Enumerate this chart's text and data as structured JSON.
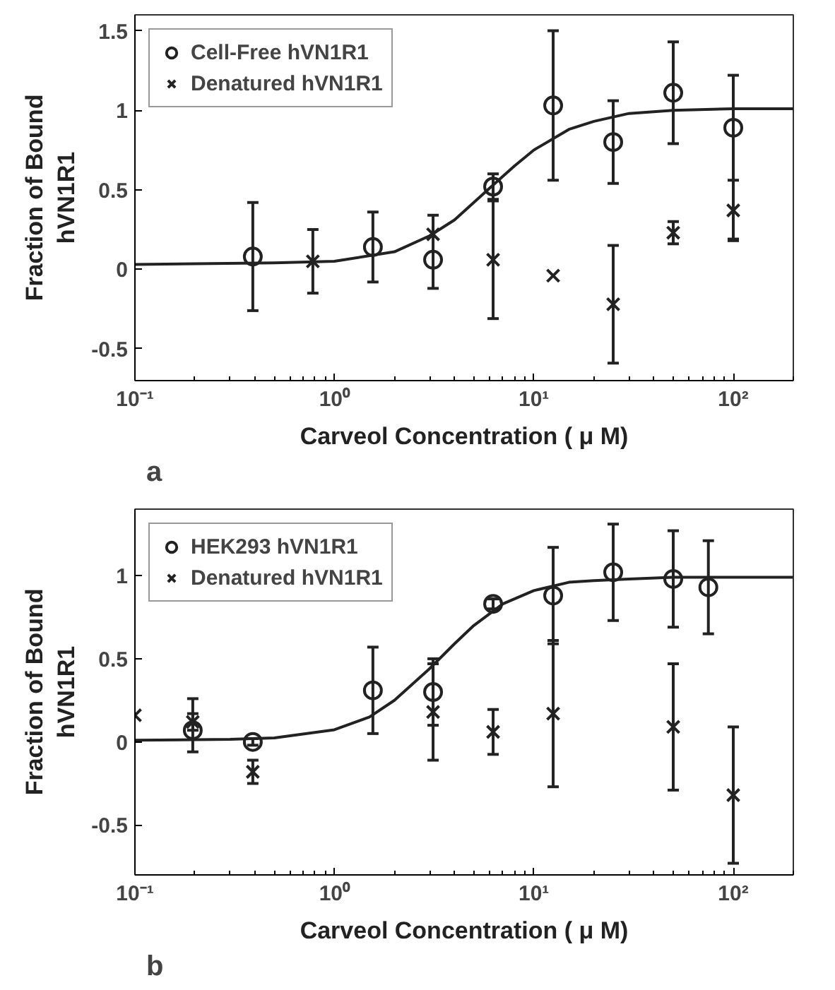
{
  "chart_data": [
    {
      "type": "scatter",
      "xlabel": "Carveol Concentration ( μ M)",
      "ylabel": "Fraction of Bound\nhVN1R1",
      "log": "x",
      "xlim": [
        0.1,
        200
      ],
      "ylim": [
        -0.7,
        1.6
      ],
      "xticks": [
        {
          "value": 0.1,
          "label": "10⁻¹"
        },
        {
          "value": 1,
          "label": "10⁰"
        },
        {
          "value": 10,
          "label": "10¹"
        },
        {
          "value": 100,
          "label": "10²"
        }
      ],
      "yticks": [
        -0.5,
        0,
        0.5,
        1,
        1.5
      ],
      "grid": false,
      "legend": "top left",
      "annotations": [
        "a"
      ],
      "series": [
        {
          "name": "Cell-Free hVN1R1",
          "color": "#222222",
          "marker": "circle",
          "x": [
            0.39,
            1.56,
            3.125,
            6.25,
            12.5,
            25,
            50,
            100
          ],
          "values": [
            0.08,
            0.14,
            0.06,
            0.52,
            1.03,
            0.8,
            1.11,
            0.89
          ],
          "errors": [
            0.34,
            0.22,
            [
              -0.12,
              0.34
            ],
            0.08,
            0.47,
            0.26,
            0.32,
            [
              0.19,
              1.22
            ]
          ]
        },
        {
          "name": "Denatured hVN1R1",
          "color": "#222222",
          "marker": "cross",
          "x": [
            0.78,
            3.125,
            6.25,
            12.5,
            25,
            50,
            100
          ],
          "values": [
            0.05,
            0.22,
            0.06,
            -0.04,
            -0.22,
            0.23,
            0.37
          ],
          "errors": [
            0.2,
            null,
            0.37,
            null,
            0.37,
            0.07,
            0.19
          ]
        },
        {
          "type": "line",
          "color": "#222222",
          "x": [
            0.1,
            0.5,
            1,
            2,
            3,
            4,
            5,
            6,
            8,
            10,
            15,
            20,
            30,
            50,
            100,
            200
          ],
          "values": [
            0.03,
            0.04,
            0.05,
            0.11,
            0.21,
            0.31,
            0.42,
            0.51,
            0.65,
            0.75,
            0.88,
            0.93,
            0.98,
            1.0,
            1.01,
            1.01
          ]
        }
      ]
    },
    {
      "type": "scatter",
      "xlabel": "Carveol Concentration ( μ M)",
      "ylabel": "Fraction of Bound\nhVN1R1",
      "log": "x",
      "xlim": [
        0.1,
        200
      ],
      "ylim": [
        -0.8,
        1.4
      ],
      "xticks": [
        {
          "value": 0.1,
          "label": "10⁻¹"
        },
        {
          "value": 1,
          "label": "10⁰"
        },
        {
          "value": 10,
          "label": "10¹"
        },
        {
          "value": 100,
          "label": "10²"
        }
      ],
      "yticks": [
        -0.5,
        0,
        0.5,
        1
      ],
      "grid": false,
      "legend": "top left",
      "annotations": [
        "b"
      ],
      "series": [
        {
          "name": "HEK293 hVN1R1",
          "color": "#222222",
          "marker": "circle",
          "x": [
            0.195,
            0.39,
            1.56,
            3.125,
            6.25,
            12.5,
            25,
            50,
            75
          ],
          "values": [
            0.07,
            0.0,
            0.31,
            0.3,
            0.83,
            0.88,
            1.02,
            0.98,
            0.93
          ],
          "errors": [
            [
              -0.06,
              0.26
            ],
            0.02,
            0.26,
            0.2,
            0.03,
            0.29,
            0.29,
            0.29,
            0.28
          ]
        },
        {
          "name": "Denatured hVN1R1",
          "color": "#222222",
          "marker": "cross",
          "x": [
            0.1,
            0.195,
            0.39,
            3.125,
            6.25,
            12.5,
            50,
            100
          ],
          "values": [
            0.16,
            0.12,
            -0.18,
            0.18,
            0.06,
            0.17,
            0.09,
            -0.32
          ],
          "errors": [
            null,
            0.05,
            0.07,
            0.29,
            0.135,
            0.44,
            0.38,
            0.41
          ]
        },
        {
          "type": "line",
          "color": "#222222",
          "x": [
            0.1,
            0.3,
            0.5,
            1,
            1.5,
            2,
            3,
            4,
            5,
            7,
            10,
            15,
            20,
            30,
            50,
            100,
            200
          ],
          "values": [
            0.01,
            0.015,
            0.024,
            0.073,
            0.15,
            0.25,
            0.44,
            0.59,
            0.7,
            0.83,
            0.91,
            0.96,
            0.97,
            0.98,
            0.99,
            0.99,
            0.99
          ]
        }
      ]
    }
  ]
}
